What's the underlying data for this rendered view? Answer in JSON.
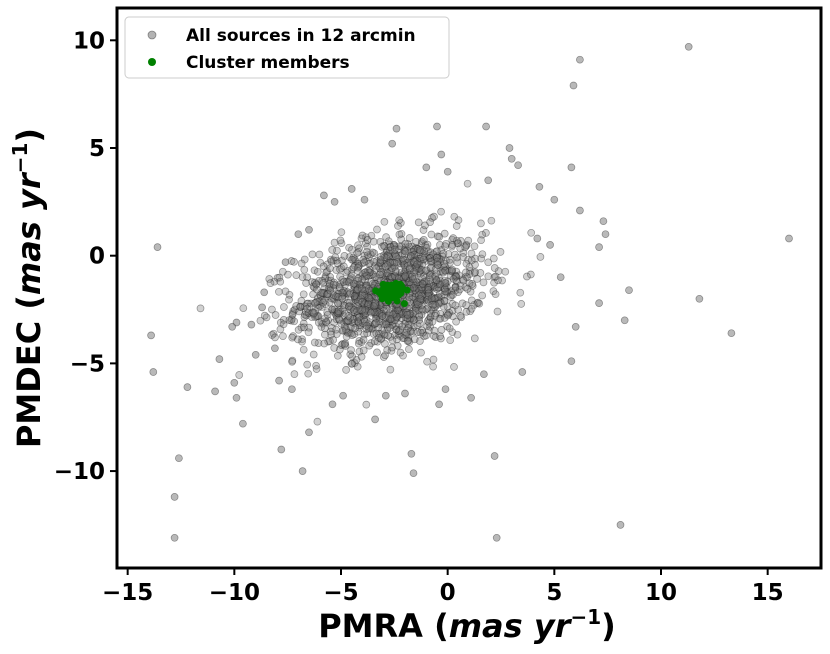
{
  "chart_data": {
    "type": "scatter",
    "xlabel": "PMRA (mas yr⁻¹)",
    "xlabel_parts": {
      "main": "PMRA (",
      "unit": "mas yr",
      "exponent": "−1",
      "close": ")"
    },
    "ylabel": "PMDEC (mas yr⁻¹)",
    "ylabel_parts": {
      "main": "PMDEC (",
      "unit": "mas yr",
      "exponent": "−1",
      "close": ")"
    },
    "xlim": [
      -15.5,
      17.5
    ],
    "ylim": [
      -14.5,
      11.5
    ],
    "xticks": [
      -15,
      -10,
      -5,
      0,
      5,
      10,
      15
    ],
    "xtick_labels": [
      "−15",
      "−10",
      "−5",
      "0",
      "5",
      "10",
      "15"
    ],
    "yticks": [
      -10,
      -5,
      0,
      5,
      10
    ],
    "ytick_labels": [
      "−10",
      "−5",
      "0",
      "5",
      "10"
    ],
    "grid": false,
    "legend_position": "upper-left",
    "legend": [
      {
        "label": "All sources in 12 arcmin",
        "color": "#808080"
      },
      {
        "label": "Cluster members",
        "color": "#008000"
      }
    ],
    "series": [
      {
        "name": "All sources in 12 arcmin",
        "color": "#808080",
        "points_outliers": [
          [
            11.3,
            9.7
          ],
          [
            6.2,
            9.1
          ],
          [
            5.9,
            7.9
          ],
          [
            -0.5,
            6.0
          ],
          [
            1.8,
            6.0
          ],
          [
            -2.4,
            5.9
          ],
          [
            2.9,
            5.0
          ],
          [
            -2.6,
            5.2
          ],
          [
            3.0,
            4.5
          ],
          [
            5.8,
            4.1
          ],
          [
            -0.3,
            4.7
          ],
          [
            -1.0,
            4.1
          ],
          [
            0.0,
            3.9
          ],
          [
            3.3,
            4.2
          ],
          [
            1.9,
            3.5
          ],
          [
            4.3,
            3.2
          ],
          [
            5.0,
            2.6
          ],
          [
            -5.8,
            2.8
          ],
          [
            -5.3,
            2.5
          ],
          [
            -4.5,
            3.1
          ],
          [
            -3.9,
            2.6
          ],
          [
            6.2,
            2.1
          ],
          [
            7.3,
            1.6
          ],
          [
            7.4,
            1.0
          ],
          [
            7.1,
            0.4
          ],
          [
            16.0,
            0.8
          ],
          [
            -13.6,
            0.4
          ],
          [
            -7.0,
            1.0
          ],
          [
            -6.5,
            1.2
          ],
          [
            -7.6,
            -0.3
          ],
          [
            11.8,
            -2.0
          ],
          [
            7.1,
            -2.2
          ],
          [
            8.5,
            -1.6
          ],
          [
            13.3,
            -3.6
          ],
          [
            -13.9,
            -3.7
          ],
          [
            -13.8,
            -5.4
          ],
          [
            -12.2,
            -6.1
          ],
          [
            -10.9,
            -6.3
          ],
          [
            -10.7,
            -4.8
          ],
          [
            -10.0,
            -5.9
          ],
          [
            -9.9,
            -6.6
          ],
          [
            -9.0,
            -4.6
          ],
          [
            -9.6,
            -7.8
          ],
          [
            -7.8,
            -9.0
          ],
          [
            -6.5,
            -8.2
          ],
          [
            -6.8,
            -10.0
          ],
          [
            -3.4,
            -7.6
          ],
          [
            -1.7,
            -9.2
          ],
          [
            -1.6,
            -10.1
          ],
          [
            -0.4,
            -6.9
          ],
          [
            2.2,
            -9.3
          ],
          [
            8.3,
            -3.0
          ],
          [
            8.1,
            -12.5
          ],
          [
            2.3,
            -13.1
          ],
          [
            -12.8,
            -11.2
          ],
          [
            -12.6,
            -9.4
          ],
          [
            -12.8,
            -13.1
          ],
          [
            -9.9,
            -3.1
          ],
          [
            -9.2,
            -3.2
          ],
          [
            6.0,
            -3.3
          ],
          [
            5.8,
            -4.9
          ],
          [
            5.3,
            -1.0
          ],
          [
            4.2,
            0.8
          ],
          [
            4.8,
            0.5
          ],
          [
            -4.9,
            -6.5
          ],
          [
            -5.4,
            -6.9
          ],
          [
            -0.1,
            -6.2
          ],
          [
            1.1,
            -6.6
          ],
          [
            3.5,
            -5.4
          ],
          [
            1.7,
            -5.5
          ],
          [
            -8.6,
            -1.7
          ],
          [
            -8.7,
            -2.4
          ],
          [
            -10.1,
            -3.3
          ],
          [
            -8.1,
            -4.3
          ],
          [
            -7.9,
            -5.8
          ],
          [
            -7.3,
            -6.2
          ],
          [
            -2.0,
            -6.4
          ],
          [
            -2.9,
            -6.5
          ]
        ],
        "core": {
          "count": 1400,
          "center": [
            -2.7,
            -1.7
          ],
          "std": [
            2.2,
            1.35
          ],
          "correlation": 0.25,
          "fill_opacity": 0.35
        }
      },
      {
        "name": "Cluster members",
        "color": "#008000",
        "core": {
          "count": 90,
          "center": [
            -2.65,
            -1.65
          ],
          "std": [
            0.3,
            0.2
          ],
          "fill_opacity": 1.0
        }
      }
    ]
  }
}
